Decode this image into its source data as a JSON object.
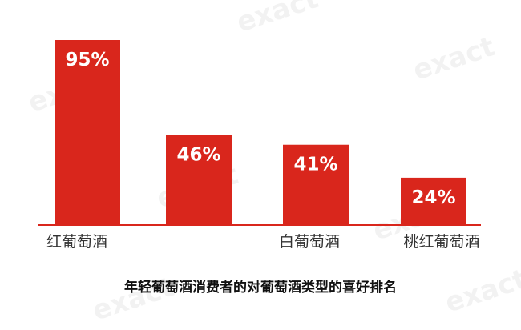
{
  "chart_data": {
    "type": "bar",
    "title": "年轻葡萄酒消费者的对葡萄酒类型的喜好排名",
    "categories": [
      "红葡萄酒",
      "",
      "白葡萄酒",
      "桃红葡萄酒"
    ],
    "values": [
      95,
      46,
      41,
      24
    ],
    "data_labels": [
      "95%",
      "46%",
      "41%",
      "24%"
    ],
    "unit": "%",
    "xlabel": "",
    "ylabel": "",
    "ylim": [
      0,
      100
    ],
    "grid": false,
    "legend": "none",
    "colors": {
      "bar": "#d9261c",
      "axis": "#d9261c",
      "label": "#ffffff",
      "category": "#333333"
    }
  },
  "watermark": "exact"
}
